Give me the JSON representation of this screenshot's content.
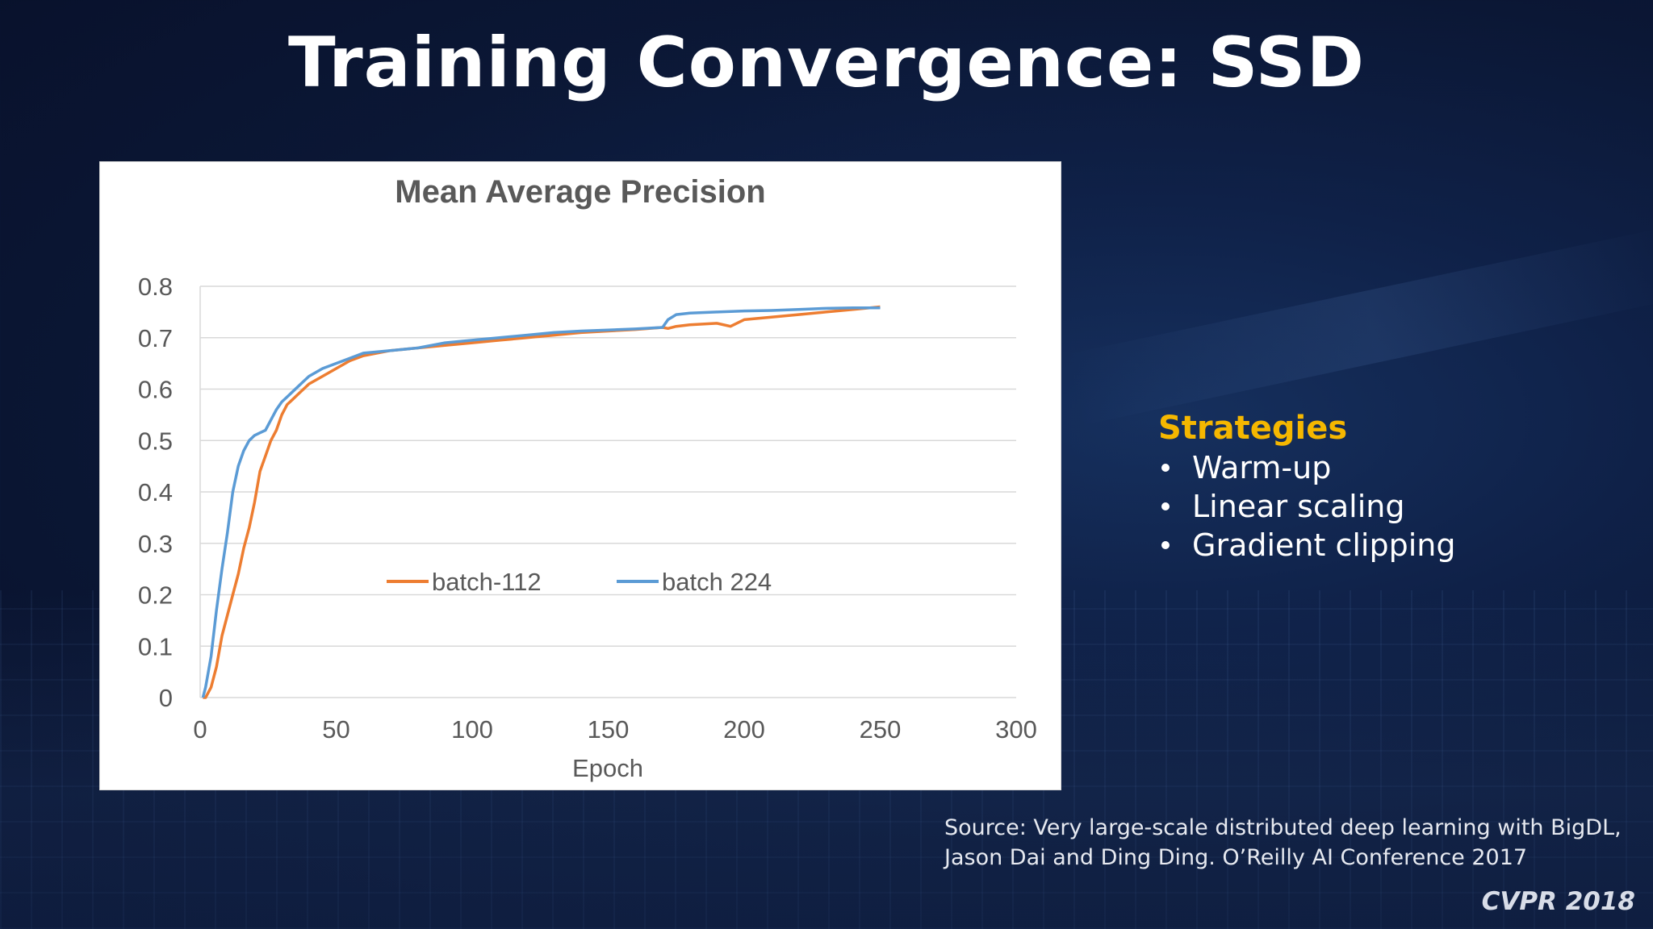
{
  "slide": {
    "title": "Training Convergence: SSD",
    "strategies_heading": "Strategies",
    "strategies": [
      "Warm-up",
      "Linear scaling",
      "Gradient clipping"
    ],
    "source_line1": "Source: Very large-scale distributed deep learning with BigDL,",
    "source_line2": "Jason Dai and Ding Ding. O’Reilly AI Conference 2017",
    "conference": "CVPR 2018"
  },
  "colors": {
    "background": "#0b1735",
    "title": "#ffffff",
    "strategies_heading": "#f5b700",
    "batch_112": "#ed7d31",
    "batch_224": "#5b9bd5"
  },
  "chart_data": {
    "type": "line",
    "title": "Mean Average Precision",
    "xlabel": "Epoch",
    "ylabel": "",
    "xlim": [
      0,
      300
    ],
    "ylim": [
      0,
      0.8
    ],
    "x_ticks": [
      0,
      50,
      100,
      150,
      200,
      250,
      300
    ],
    "y_ticks": [
      0,
      0.1,
      0.2,
      0.3,
      0.4,
      0.5,
      0.6,
      0.7,
      0.8
    ],
    "y_tick_labels": [
      "0",
      "0.1",
      "0.2",
      "0.3",
      "0.4",
      "0.5",
      "0.6",
      "0.7",
      "0.8"
    ],
    "grid": "horizontal",
    "legend": "inside, lower-middle",
    "series": [
      {
        "name": "batch-112",
        "color": "#ed7d31",
        "x": [
          1,
          2,
          4,
          6,
          8,
          10,
          12,
          14,
          16,
          18,
          20,
          22,
          24,
          26,
          28,
          30,
          32,
          34,
          36,
          38,
          40,
          45,
          50,
          55,
          60,
          70,
          80,
          90,
          100,
          110,
          120,
          130,
          140,
          150,
          160,
          170,
          172,
          175,
          180,
          190,
          195,
          200,
          210,
          220,
          230,
          240,
          250
        ],
        "y": [
          0.0,
          0.0,
          0.02,
          0.06,
          0.12,
          0.16,
          0.2,
          0.24,
          0.29,
          0.33,
          0.38,
          0.44,
          0.47,
          0.5,
          0.52,
          0.55,
          0.57,
          0.58,
          0.59,
          0.6,
          0.61,
          0.625,
          0.64,
          0.655,
          0.665,
          0.675,
          0.68,
          0.685,
          0.69,
          0.695,
          0.7,
          0.705,
          0.71,
          0.713,
          0.716,
          0.72,
          0.718,
          0.722,
          0.725,
          0.728,
          0.722,
          0.735,
          0.74,
          0.745,
          0.75,
          0.755,
          0.76
        ]
      },
      {
        "name": "batch 224",
        "color": "#5b9bd5",
        "x": [
          1,
          2,
          4,
          6,
          8,
          10,
          12,
          14,
          16,
          18,
          20,
          22,
          24,
          26,
          28,
          30,
          32,
          34,
          36,
          38,
          40,
          45,
          50,
          55,
          60,
          70,
          80,
          90,
          100,
          110,
          120,
          130,
          140,
          150,
          160,
          170,
          172,
          175,
          180,
          190,
          200,
          210,
          220,
          230,
          240,
          250
        ],
        "y": [
          0.0,
          0.02,
          0.08,
          0.17,
          0.25,
          0.32,
          0.4,
          0.45,
          0.48,
          0.5,
          0.51,
          0.515,
          0.52,
          0.54,
          0.56,
          0.575,
          0.585,
          0.595,
          0.605,
          0.615,
          0.625,
          0.64,
          0.65,
          0.66,
          0.67,
          0.675,
          0.68,
          0.69,
          0.695,
          0.7,
          0.705,
          0.71,
          0.713,
          0.715,
          0.717,
          0.72,
          0.735,
          0.745,
          0.748,
          0.75,
          0.752,
          0.753,
          0.755,
          0.757,
          0.758,
          0.758
        ]
      }
    ]
  }
}
